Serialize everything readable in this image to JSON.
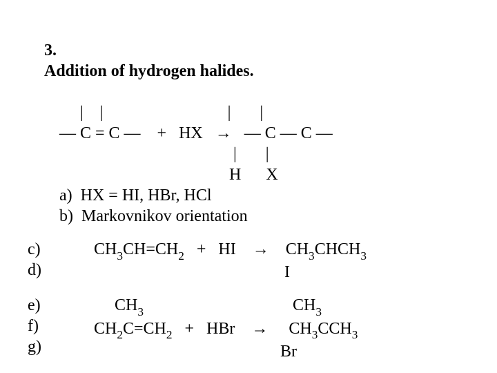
{
  "font": {
    "family": "Times New Roman",
    "size_pt": 24,
    "bold_title": true,
    "color": "#000000",
    "background": "#ffffff"
  },
  "title": {
    "number": "3.",
    "text": "Addition of hydrogen halides."
  },
  "reaction_scheme": {
    "line_top": "     |    |                              |       |",
    "line_main": "— C = C —    +   HX   →   — C — C —",
    "line_bottom": "                                          |       |",
    "line_sub": "                                         H      X"
  },
  "sublist1": {
    "a": "a)  HX = HI, HBr, HCl",
    "b": "b)  Markovnikov orientation"
  },
  "example1": {
    "labels_c": "c)",
    "labels_d": "d)",
    "line1": "CH₃CH=CH₂   +   HI    →    CH₃CHCH₃",
    "line2": "                                              I"
  },
  "example2": {
    "labels_e": "e)",
    "labels_f": "f)",
    "labels_g": "g)",
    "top": "     CH₃                                    CH₃",
    "main": "CH₂C=CH₂   +   HBr    →     CH₃CCH₃",
    "bot": "                                             Br"
  }
}
